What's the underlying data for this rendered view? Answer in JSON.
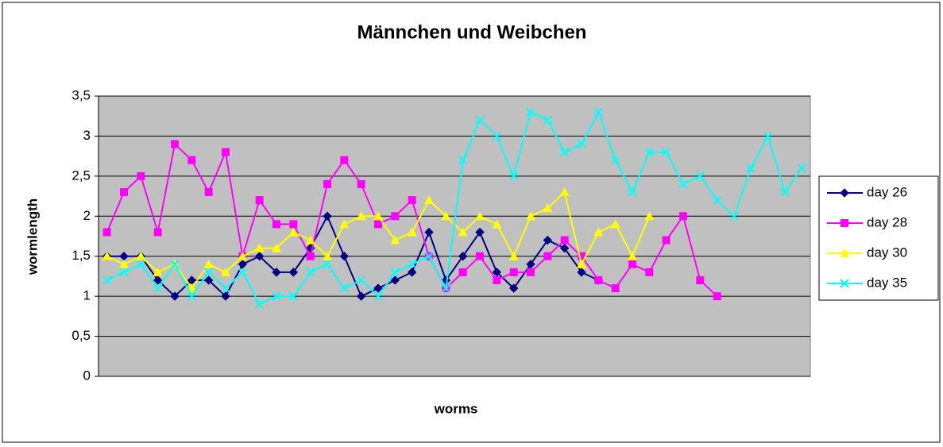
{
  "chart_data": {
    "type": "line",
    "title": "Männchen und Weibchen",
    "x_label": "worms",
    "y_label": "wormlength",
    "categories": [
      null,
      null,
      null,
      null,
      null,
      null,
      null,
      null,
      null,
      null,
      null,
      null,
      null,
      null,
      null,
      null,
      null,
      null,
      null,
      null,
      null,
      null,
      null,
      null,
      null,
      null,
      null,
      null,
      null,
      null,
      null,
      null,
      null,
      null,
      null,
      null,
      null,
      null,
      null,
      null,
      null,
      null
    ],
    "ylim": [
      0,
      3.5
    ],
    "yticks": [
      0,
      {
        "value": 0.5,
        "label": "0,5"
      },
      1,
      {
        "value": 1.5,
        "label": "1,5"
      },
      2,
      {
        "value": 2.5,
        "label": "2,5"
      },
      3,
      {
        "value": 3.5,
        "label": "3,5"
      }
    ],
    "grid": true,
    "legend": "right",
    "plot_background": "#c0c0c0",
    "series": [
      {
        "name": "day 26",
        "color": "#000080",
        "marker": "diamond",
        "values": [
          1.5,
          1.5,
          1.5,
          1.2,
          1.0,
          1.2,
          1.2,
          1.0,
          1.4,
          1.5,
          1.3,
          1.3,
          1.6,
          2.0,
          1.5,
          1.0,
          1.1,
          1.2,
          1.3,
          1.8,
          1.2,
          1.5,
          1.8,
          1.3,
          1.1,
          1.4,
          1.7,
          1.6,
          1.3,
          1.2,
          null,
          null,
          null,
          null,
          null,
          null,
          null,
          null,
          null,
          null,
          null,
          null
        ]
      },
      {
        "name": "day 28",
        "color": "#ff00ff",
        "marker": "square",
        "values": [
          1.8,
          2.3,
          2.5,
          1.8,
          2.9,
          2.7,
          2.3,
          2.8,
          1.5,
          2.2,
          1.9,
          1.9,
          1.5,
          2.4,
          2.7,
          2.4,
          1.9,
          2.0,
          2.2,
          1.5,
          1.1,
          1.3,
          1.5,
          1.2,
          1.3,
          1.3,
          1.5,
          1.7,
          1.5,
          1.2,
          1.1,
          1.4,
          1.3,
          1.7,
          2.0,
          1.2,
          1.0,
          null,
          null,
          null,
          null,
          null
        ]
      },
      {
        "name": "day 30",
        "color": "#ffff00",
        "marker": "triangle",
        "values": [
          1.5,
          1.4,
          1.5,
          1.3,
          1.4,
          1.1,
          1.4,
          1.3,
          1.5,
          1.6,
          1.6,
          1.8,
          1.7,
          1.5,
          1.9,
          2.0,
          2.0,
          1.7,
          1.8,
          2.2,
          2.0,
          1.8,
          2.0,
          1.9,
          1.5,
          2.0,
          2.1,
          2.3,
          1.4,
          1.8,
          1.9,
          1.5,
          2.0,
          null,
          null,
          null,
          null,
          null,
          null,
          null,
          null,
          null
        ]
      },
      {
        "name": "day 35",
        "color": "#00ffff",
        "marker": "x",
        "values": [
          1.2,
          1.3,
          1.4,
          1.1,
          1.4,
          1.0,
          1.3,
          1.1,
          1.3,
          0.9,
          1.0,
          1.0,
          1.3,
          1.4,
          1.1,
          1.2,
          1.0,
          1.3,
          1.4,
          1.5,
          1.1,
          2.7,
          3.2,
          3.0,
          2.5,
          3.3,
          3.2,
          2.8,
          2.9,
          3.3,
          2.7,
          2.3,
          2.8,
          2.8,
          2.4,
          2.5,
          2.2,
          2.0,
          2.6,
          3.0,
          2.3,
          2.6
        ]
      }
    ]
  }
}
